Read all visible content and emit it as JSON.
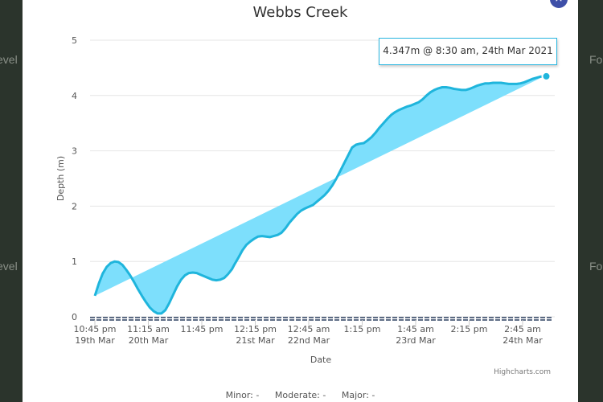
{
  "background": {
    "left_labels": [
      "evel",
      "evel"
    ],
    "right_labels": [
      "Fo",
      "Fo"
    ]
  },
  "modal": {
    "close_icon": "×",
    "title": "Webbs Creek",
    "tooltip": "4.347m @ 8:30 am, 24th Mar 2021",
    "credits": "Highcharts.com",
    "legend": [
      {
        "label": "Minor: -"
      },
      {
        "label": "Moderate: -"
      },
      {
        "label": "Major: -"
      }
    ]
  },
  "colors": {
    "line": "#1fb5dc",
    "fill": "#7ddffc",
    "threshold": "#2a3f5f",
    "close_button": "#3e4fa8"
  },
  "chart_data": {
    "type": "area",
    "title": "Webbs Creek",
    "xlabel": "Date",
    "ylabel": "Depth (m)",
    "ylim": [
      0,
      5
    ],
    "yticks": [
      0,
      1,
      2,
      3,
      4,
      5
    ],
    "xticks": [
      [
        "10:45 pm",
        "19th Mar"
      ],
      [
        "11:15 am",
        "20th Mar"
      ],
      [
        "11:45 pm",
        ""
      ],
      [
        "12:15 pm",
        "21st Mar"
      ],
      [
        "12:45 am",
        "22nd Mar"
      ],
      [
        "1:15 pm",
        ""
      ],
      [
        "1:45 am",
        "23rd Mar"
      ],
      [
        "2:15 pm",
        ""
      ],
      [
        "2:45 am",
        "24th Mar"
      ]
    ],
    "x_hours": [
      0,
      3,
      6,
      9,
      12,
      15,
      18,
      21,
      24,
      27,
      30,
      33,
      36,
      39,
      42,
      45,
      48,
      51,
      54,
      57,
      60,
      63,
      66,
      69,
      72,
      75,
      78,
      81,
      84,
      87,
      90,
      93,
      96,
      99,
      102,
      105,
      107,
      110,
      113,
      116,
      119,
      122,
      125,
      128,
      131,
      134,
      137,
      140,
      143,
      146,
      149,
      152,
      155,
      158,
      161,
      164,
      167,
      170,
      173,
      176,
      179,
      182,
      185,
      188,
      191,
      194,
      197,
      200,
      203,
      206,
      209,
      212,
      215,
      218,
      221,
      224,
      227,
      230,
      233,
      236,
      239,
      242,
      245,
      248,
      251,
      254,
      257,
      260,
      263,
      266,
      269,
      272,
      275,
      278,
      281,
      284,
      287,
      290,
      293,
      296,
      299,
      302,
      305,
      308,
      311,
      314,
      317,
      320,
      323,
      326,
      329,
      332,
      335,
      338,
      341,
      344,
      345.75
    ],
    "series": [
      {
        "values": [
          0.38,
          0.6,
          0.78,
          0.9,
          0.97,
          1.0,
          0.99,
          0.94,
          0.85,
          0.75,
          0.63,
          0.5,
          0.38,
          0.27,
          0.17,
          0.1,
          0.06,
          0.06,
          0.12,
          0.25,
          0.4,
          0.55,
          0.67,
          0.75,
          0.79,
          0.8,
          0.79,
          0.76,
          0.73,
          0.7,
          0.67,
          0.66,
          0.67,
          0.7,
          0.77,
          0.86,
          0.95,
          1.07,
          1.2,
          1.3,
          1.36,
          1.41,
          1.45,
          1.46,
          1.45,
          1.44,
          1.46,
          1.48,
          1.52,
          1.6,
          1.7,
          1.78,
          1.86,
          1.92,
          1.96,
          1.99,
          2.02,
          2.08,
          2.14,
          2.2,
          2.28,
          2.38,
          2.5,
          2.64,
          2.78,
          2.92,
          3.06,
          3.11,
          3.13,
          3.14,
          3.19,
          3.25,
          3.33,
          3.42,
          3.5,
          3.58,
          3.65,
          3.7,
          3.74,
          3.77,
          3.8,
          3.82,
          3.85,
          3.88,
          3.93,
          4.0,
          4.06,
          4.1,
          4.13,
          4.15,
          4.15,
          4.14,
          4.12,
          4.11,
          4.1,
          4.1,
          4.12,
          4.15,
          4.18,
          4.2,
          4.22,
          4.22,
          4.23,
          4.23,
          4.23,
          4.22,
          4.21,
          4.21,
          4.21,
          4.22,
          4.24,
          4.27,
          4.3,
          4.32,
          4.34,
          4.347
        ]
      }
    ]
  }
}
